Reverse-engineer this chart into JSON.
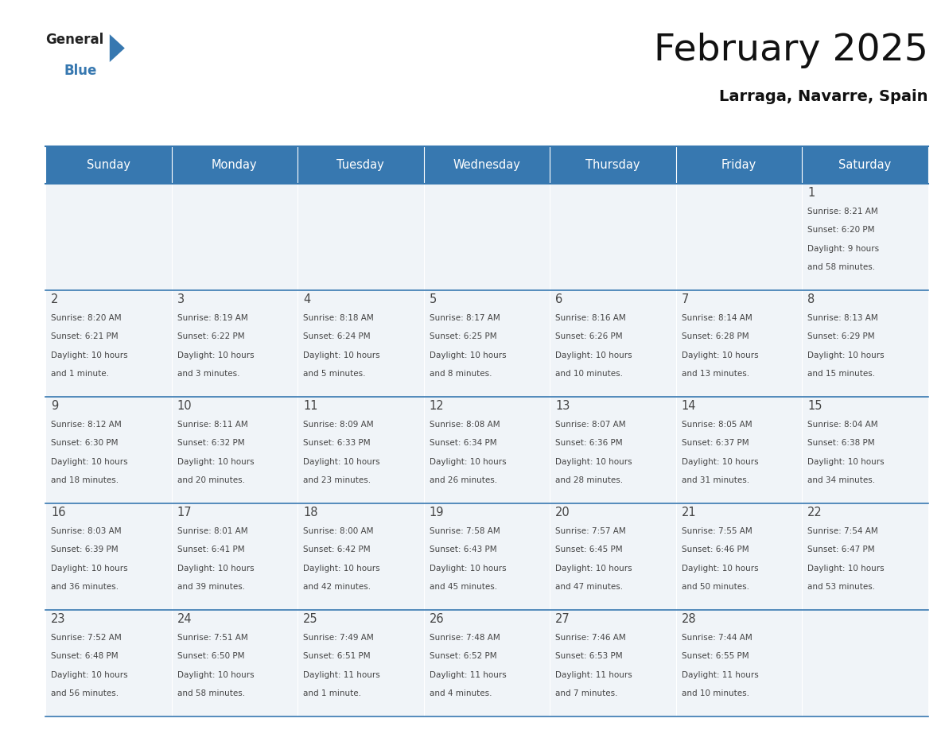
{
  "title": "February 2025",
  "subtitle": "Larraga, Navarre, Spain",
  "header_color": "#3778b0",
  "header_text_color": "#ffffff",
  "cell_bg_color": "#f0f4f8",
  "border_color": "#3778b0",
  "text_color": "#444444",
  "days_of_week": [
    "Sunday",
    "Monday",
    "Tuesday",
    "Wednesday",
    "Thursday",
    "Friday",
    "Saturday"
  ],
  "weeks": [
    [
      null,
      null,
      null,
      null,
      null,
      null,
      1
    ],
    [
      2,
      3,
      4,
      5,
      6,
      7,
      8
    ],
    [
      9,
      10,
      11,
      12,
      13,
      14,
      15
    ],
    [
      16,
      17,
      18,
      19,
      20,
      21,
      22
    ],
    [
      23,
      24,
      25,
      26,
      27,
      28,
      null
    ]
  ],
  "day_data": {
    "1": {
      "sunrise": "8:21 AM",
      "sunset": "6:20 PM",
      "daylight_hours": 9,
      "daylight_minutes": 58
    },
    "2": {
      "sunrise": "8:20 AM",
      "sunset": "6:21 PM",
      "daylight_hours": 10,
      "daylight_minutes": 1
    },
    "3": {
      "sunrise": "8:19 AM",
      "sunset": "6:22 PM",
      "daylight_hours": 10,
      "daylight_minutes": 3
    },
    "4": {
      "sunrise": "8:18 AM",
      "sunset": "6:24 PM",
      "daylight_hours": 10,
      "daylight_minutes": 5
    },
    "5": {
      "sunrise": "8:17 AM",
      "sunset": "6:25 PM",
      "daylight_hours": 10,
      "daylight_minutes": 8
    },
    "6": {
      "sunrise": "8:16 AM",
      "sunset": "6:26 PM",
      "daylight_hours": 10,
      "daylight_minutes": 10
    },
    "7": {
      "sunrise": "8:14 AM",
      "sunset": "6:28 PM",
      "daylight_hours": 10,
      "daylight_minutes": 13
    },
    "8": {
      "sunrise": "8:13 AM",
      "sunset": "6:29 PM",
      "daylight_hours": 10,
      "daylight_minutes": 15
    },
    "9": {
      "sunrise": "8:12 AM",
      "sunset": "6:30 PM",
      "daylight_hours": 10,
      "daylight_minutes": 18
    },
    "10": {
      "sunrise": "8:11 AM",
      "sunset": "6:32 PM",
      "daylight_hours": 10,
      "daylight_minutes": 20
    },
    "11": {
      "sunrise": "8:09 AM",
      "sunset": "6:33 PM",
      "daylight_hours": 10,
      "daylight_minutes": 23
    },
    "12": {
      "sunrise": "8:08 AM",
      "sunset": "6:34 PM",
      "daylight_hours": 10,
      "daylight_minutes": 26
    },
    "13": {
      "sunrise": "8:07 AM",
      "sunset": "6:36 PM",
      "daylight_hours": 10,
      "daylight_minutes": 28
    },
    "14": {
      "sunrise": "8:05 AM",
      "sunset": "6:37 PM",
      "daylight_hours": 10,
      "daylight_minutes": 31
    },
    "15": {
      "sunrise": "8:04 AM",
      "sunset": "6:38 PM",
      "daylight_hours": 10,
      "daylight_minutes": 34
    },
    "16": {
      "sunrise": "8:03 AM",
      "sunset": "6:39 PM",
      "daylight_hours": 10,
      "daylight_minutes": 36
    },
    "17": {
      "sunrise": "8:01 AM",
      "sunset": "6:41 PM",
      "daylight_hours": 10,
      "daylight_minutes": 39
    },
    "18": {
      "sunrise": "8:00 AM",
      "sunset": "6:42 PM",
      "daylight_hours": 10,
      "daylight_minutes": 42
    },
    "19": {
      "sunrise": "7:58 AM",
      "sunset": "6:43 PM",
      "daylight_hours": 10,
      "daylight_minutes": 45
    },
    "20": {
      "sunrise": "7:57 AM",
      "sunset": "6:45 PM",
      "daylight_hours": 10,
      "daylight_minutes": 47
    },
    "21": {
      "sunrise": "7:55 AM",
      "sunset": "6:46 PM",
      "daylight_hours": 10,
      "daylight_minutes": 50
    },
    "22": {
      "sunrise": "7:54 AM",
      "sunset": "6:47 PM",
      "daylight_hours": 10,
      "daylight_minutes": 53
    },
    "23": {
      "sunrise": "7:52 AM",
      "sunset": "6:48 PM",
      "daylight_hours": 10,
      "daylight_minutes": 56
    },
    "24": {
      "sunrise": "7:51 AM",
      "sunset": "6:50 PM",
      "daylight_hours": 10,
      "daylight_minutes": 58
    },
    "25": {
      "sunrise": "7:49 AM",
      "sunset": "6:51 PM",
      "daylight_hours": 11,
      "daylight_minutes": 1
    },
    "26": {
      "sunrise": "7:48 AM",
      "sunset": "6:52 PM",
      "daylight_hours": 11,
      "daylight_minutes": 4
    },
    "27": {
      "sunrise": "7:46 AM",
      "sunset": "6:53 PM",
      "daylight_hours": 11,
      "daylight_minutes": 7
    },
    "28": {
      "sunrise": "7:44 AM",
      "sunset": "6:55 PM",
      "daylight_hours": 11,
      "daylight_minutes": 10
    }
  },
  "figsize": [
    11.88,
    9.18
  ],
  "dpi": 100
}
